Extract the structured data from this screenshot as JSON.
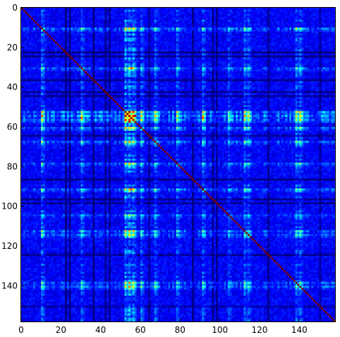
{
  "chart_data": {
    "type": "heatmap",
    "title": "",
    "xlabel": "",
    "ylabel": "",
    "rows": 158,
    "cols": 158,
    "xlim": [
      0,
      158
    ],
    "ylim": [
      158,
      0
    ],
    "y_axis_inverted": true,
    "x_ticks": [
      0,
      20,
      40,
      60,
      80,
      100,
      120,
      140
    ],
    "y_ticks": [
      0,
      20,
      40,
      60,
      80,
      100,
      120,
      140
    ],
    "x_tick_labels": [
      "0",
      "20",
      "40",
      "60",
      "80",
      "100",
      "120",
      "140"
    ],
    "y_tick_labels": [
      "0",
      "20",
      "40",
      "60",
      "80",
      "100",
      "120",
      "140"
    ],
    "colormap": "jet",
    "value_range": [
      0,
      1
    ],
    "background_level": 0.12,
    "diagonal_value": 1.0,
    "grid": false,
    "colorbar": false,
    "hot_spots": [
      {
        "row": 10,
        "col": 10,
        "value": 0.95
      },
      {
        "row": 54,
        "col": 54,
        "value": 1.0
      },
      {
        "row": 56,
        "col": 56,
        "value": 1.0
      },
      {
        "row": 57,
        "col": 54,
        "value": 0.95
      },
      {
        "row": 55,
        "col": 30,
        "value": 0.85
      },
      {
        "row": 30,
        "col": 55,
        "value": 0.8
      },
      {
        "row": 91,
        "col": 55,
        "value": 0.8
      },
      {
        "row": 112,
        "col": 112,
        "value": 0.95
      },
      {
        "row": 141,
        "col": 141,
        "value": 0.9
      }
    ],
    "bright_bands": [
      {
        "index": 10,
        "strength": 0.55
      },
      {
        "index": 30,
        "strength": 0.45
      },
      {
        "index": 52,
        "strength": 0.75
      },
      {
        "index": 54,
        "strength": 0.8
      },
      {
        "index": 56,
        "strength": 0.7
      },
      {
        "index": 60,
        "strength": 0.5
      },
      {
        "index": 67,
        "strength": 0.5
      },
      {
        "index": 78,
        "strength": 0.45
      },
      {
        "index": 91,
        "strength": 0.5
      },
      {
        "index": 104,
        "strength": 0.35
      },
      {
        "index": 112,
        "strength": 0.5
      },
      {
        "index": 114,
        "strength": 0.45
      },
      {
        "index": 138,
        "strength": 0.5
      },
      {
        "index": 140,
        "strength": 0.5
      }
    ],
    "dark_bands": [
      {
        "index": 22,
        "strength": 0.6
      },
      {
        "index": 24,
        "strength": 0.6
      },
      {
        "index": 36,
        "strength": 0.55
      },
      {
        "index": 42,
        "strength": 0.5
      },
      {
        "index": 44,
        "strength": 0.5
      },
      {
        "index": 64,
        "strength": 0.45
      },
      {
        "index": 86,
        "strength": 0.6
      },
      {
        "index": 96,
        "strength": 0.5
      },
      {
        "index": 98,
        "strength": 0.5
      },
      {
        "index": 124,
        "strength": 0.5
      },
      {
        "index": 150,
        "strength": 0.4
      }
    ]
  }
}
